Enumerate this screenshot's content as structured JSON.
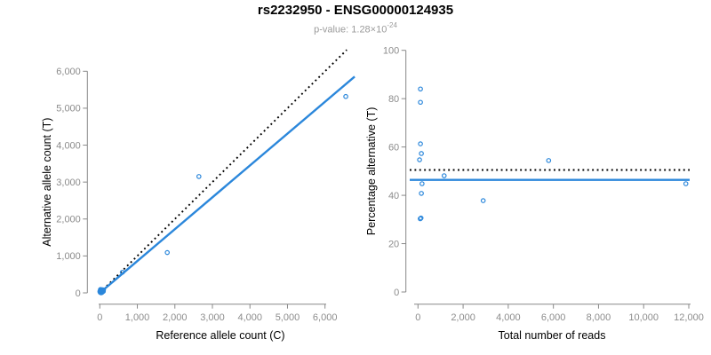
{
  "header": {
    "title": "rs2232950 - ENSG00000124935",
    "subtitle_text": "p-value: 1.28×10",
    "subtitle_exponent": "-24"
  },
  "colors": {
    "accent_blue": "#2B87DB",
    "axis_gray": "#888888",
    "tick_label_gray": "#8c8c8c",
    "reference_black": "#000000",
    "subtitle_gray": "#9b9b9b",
    "background": "#ffffff"
  },
  "chart_data": [
    {
      "name": "allele-count-scatter",
      "type": "scatter",
      "xlabel": "Reference allele count (C)",
      "ylabel": "Alternative allele count (T)",
      "xlim": [
        0,
        6600
      ],
      "ylim": [
        0,
        6600
      ],
      "xticks": [
        0,
        1000,
        2000,
        3000,
        4000,
        5000,
        6000
      ],
      "yticks": [
        0,
        1000,
        2000,
        3000,
        4000,
        5000,
        6000
      ],
      "grid": false,
      "legend": "none",
      "marker": "open-circle",
      "points": [
        [
          18,
          92
        ],
        [
          24,
          86
        ],
        [
          43,
          67
        ],
        [
          64,
          86
        ],
        [
          32,
          38
        ],
        [
          602,
          558
        ],
        [
          99,
          81
        ],
        [
          89,
          61
        ],
        [
          1797,
          1092
        ],
        [
          70,
          30
        ],
        [
          94,
          41
        ],
        [
          2640,
          3150
        ],
        [
          6553,
          5317
        ]
      ],
      "cluster_blob": {
        "x": 35,
        "y": 35
      },
      "lines": [
        {
          "name": "identity-line",
          "style": "dotted",
          "color": "#000000",
          "x1": 0,
          "y1": 0,
          "x2": 6580,
          "y2": 6580
        },
        {
          "name": "regression-line",
          "style": "solid",
          "color": "#2B87DB",
          "x1": 0,
          "y1": 0,
          "x2": 6790,
          "y2": 5855
        }
      ]
    },
    {
      "name": "percentage-alternative-scatter",
      "type": "scatter",
      "xlabel": "Total number of reads",
      "ylabel": "Percentage alternative (T)",
      "xlim": [
        0,
        12000
      ],
      "ylim": [
        0,
        100
      ],
      "xticks": [
        0,
        2000,
        4000,
        6000,
        8000,
        10000,
        12000
      ],
      "yticks": [
        0,
        20,
        40,
        60,
        80,
        100
      ],
      "grid": false,
      "legend": "none",
      "marker": "open-circle",
      "points": [
        [
          110,
          84
        ],
        [
          110,
          78.5
        ],
        [
          110,
          61.3
        ],
        [
          150,
          57.3
        ],
        [
          70,
          54.7
        ],
        [
          1160,
          48.1
        ],
        [
          180,
          44.8
        ],
        [
          150,
          40.8
        ],
        [
          2890,
          37.8
        ],
        [
          100,
          30.3
        ],
        [
          135,
          30.6
        ],
        [
          5790,
          54.4
        ],
        [
          11870,
          44.8
        ]
      ],
      "lines": [
        {
          "name": "expected-50pct-line",
          "style": "dotted",
          "color": "#000000",
          "hline": 50.5
        },
        {
          "name": "mean-percentage-line",
          "style": "solid",
          "color": "#2B87DB",
          "hline": 46.4
        }
      ]
    }
  ]
}
